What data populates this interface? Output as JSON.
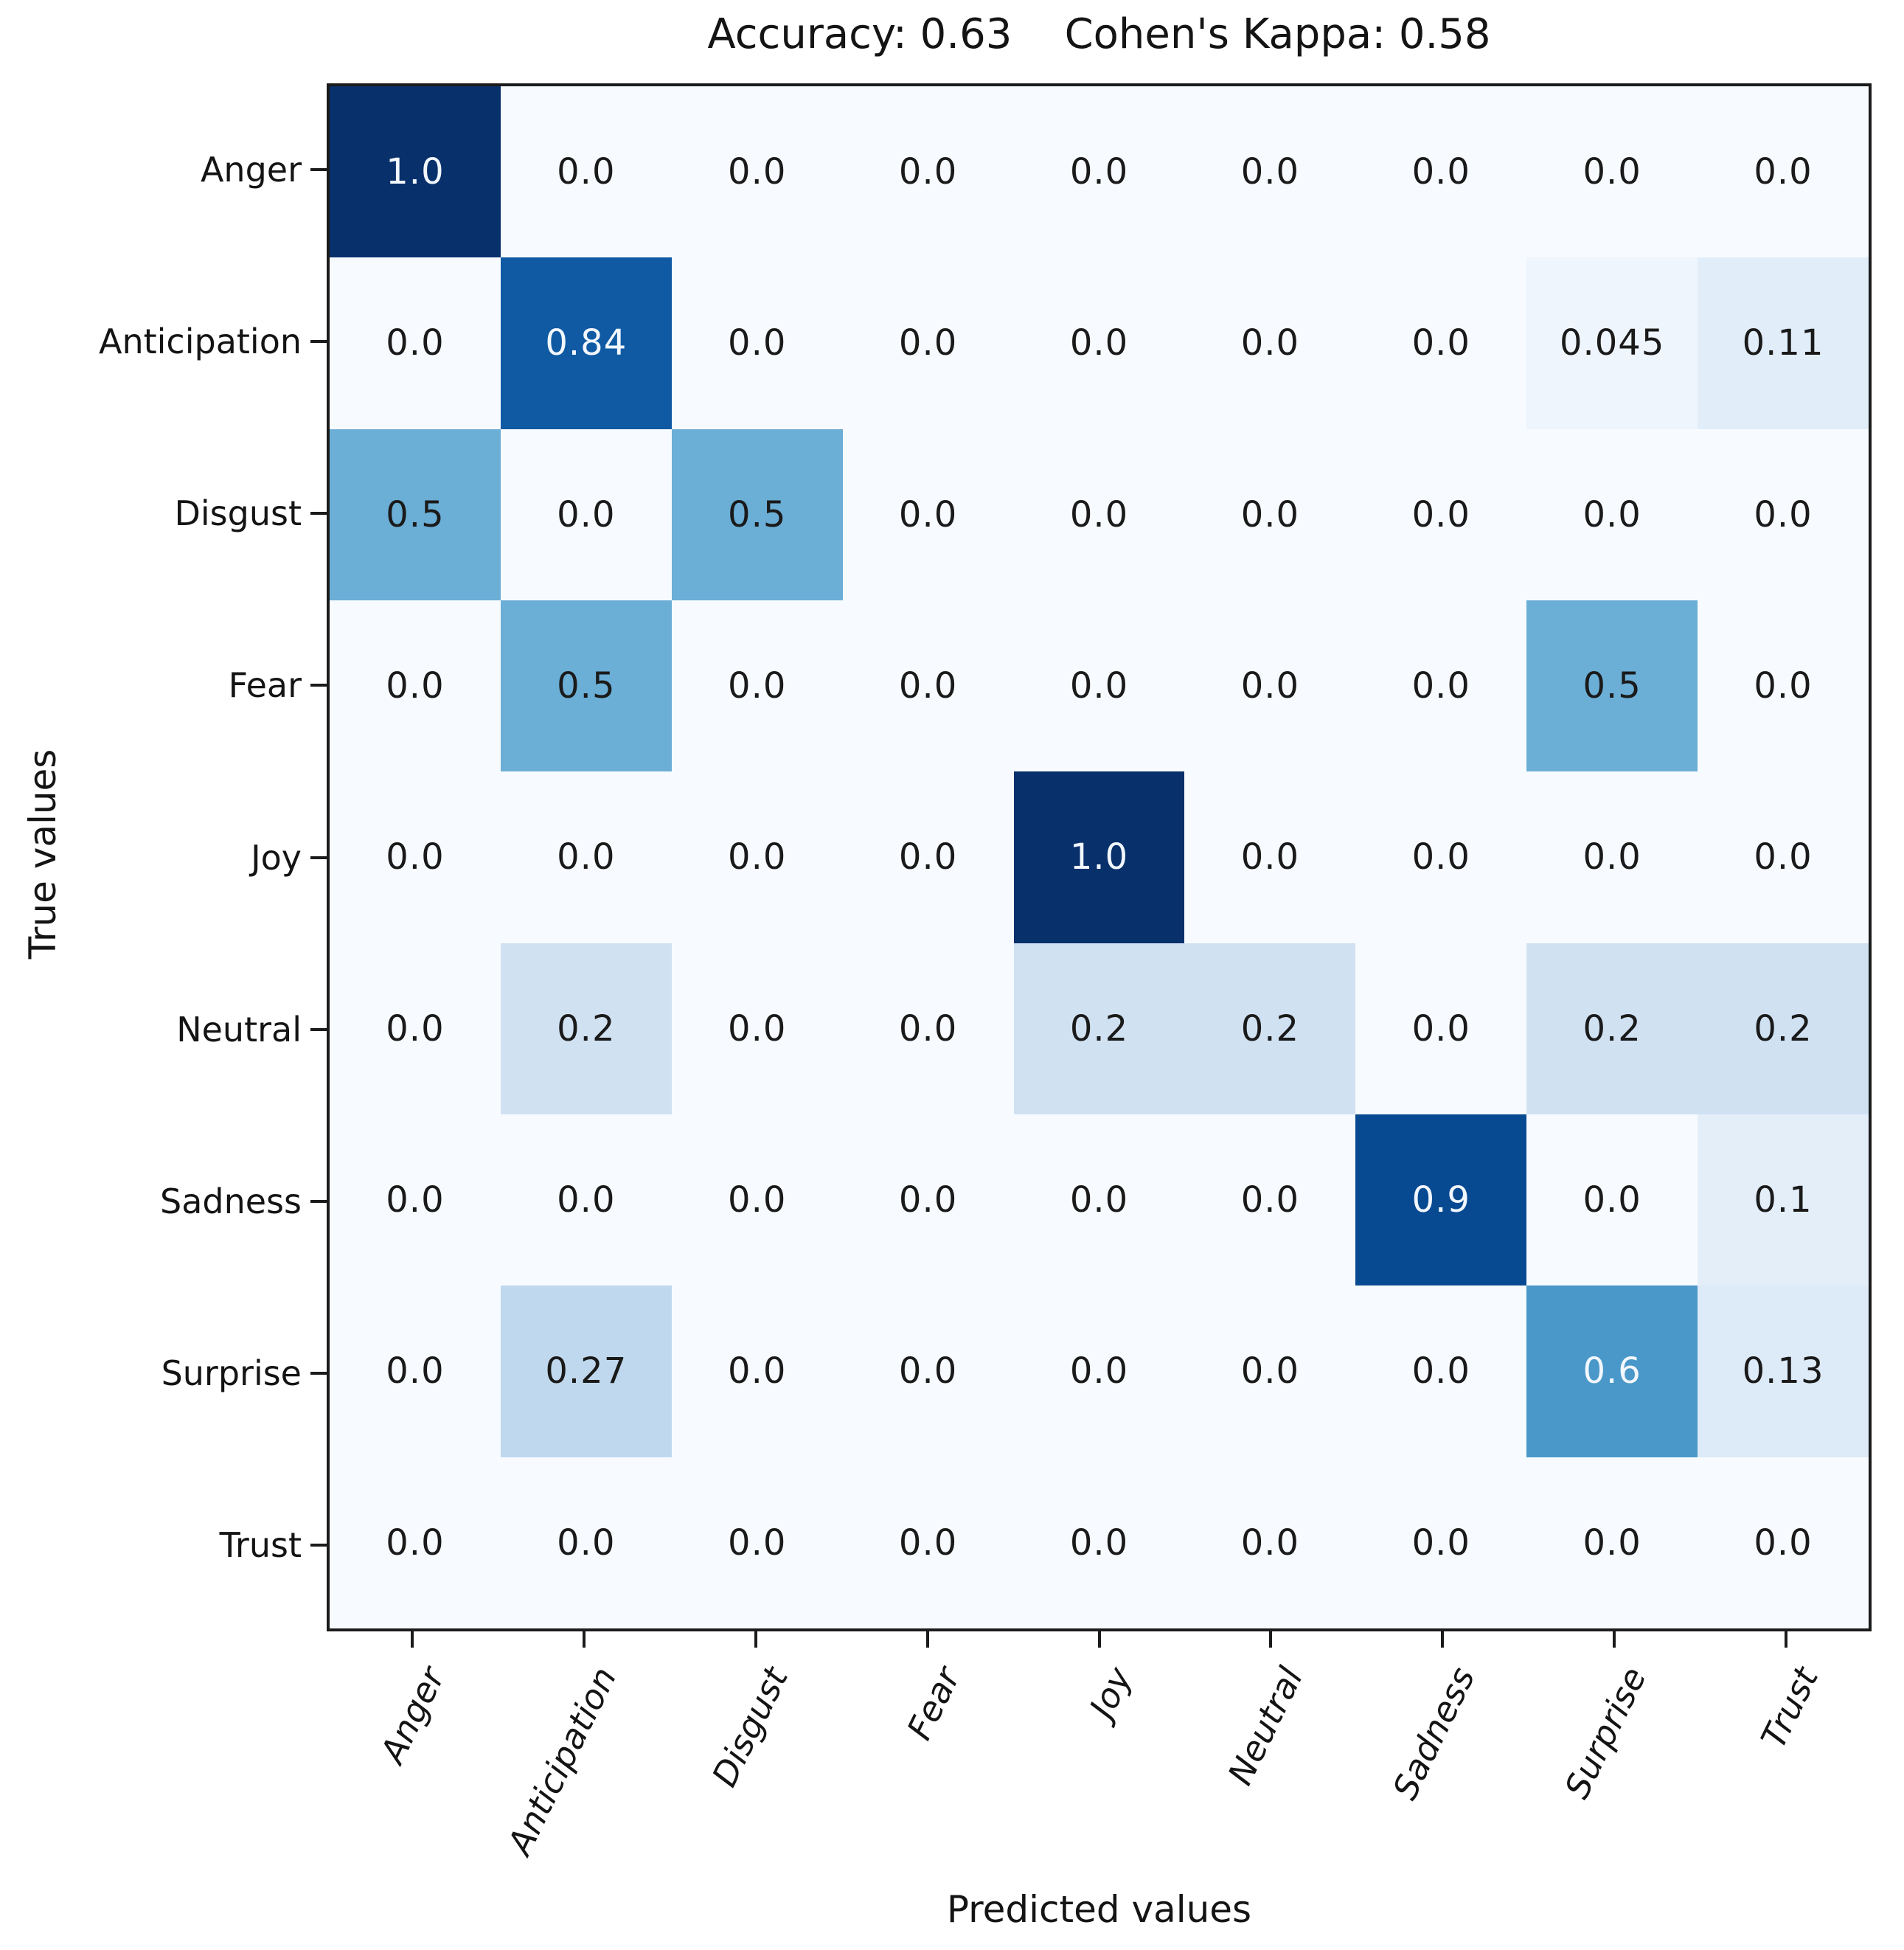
{
  "figure": {
    "title": "Accuracy: 0.63    Cohen's Kappa: 0.58"
  },
  "chart_data": {
    "type": "heatmap",
    "title": "Accuracy: 0.63    Cohen's Kappa: 0.58",
    "accuracy": "0.63",
    "cohens_kappa": "0.58",
    "xlabel": "Predicted values",
    "ylabel": "True values",
    "x_categories": [
      "Anger",
      "Anticipation",
      "Disgust",
      "Fear",
      "Joy",
      "Neutral",
      "Sadness",
      "Surprise",
      "Trust"
    ],
    "y_categories": [
      "Anger",
      "Anticipation",
      "Disgust",
      "Fear",
      "Joy",
      "Neutral",
      "Sadness",
      "Surprise",
      "Trust"
    ],
    "cell_labels": [
      [
        "1.0",
        "0.0",
        "0.0",
        "0.0",
        "0.0",
        "0.0",
        "0.0",
        "0.0",
        "0.0"
      ],
      [
        "0.0",
        "0.84",
        "0.0",
        "0.0",
        "0.0",
        "0.0",
        "0.0",
        "0.045",
        "0.11"
      ],
      [
        "0.5",
        "0.0",
        "0.5",
        "0.0",
        "0.0",
        "0.0",
        "0.0",
        "0.0",
        "0.0"
      ],
      [
        "0.0",
        "0.5",
        "0.0",
        "0.0",
        "0.0",
        "0.0",
        "0.0",
        "0.5",
        "0.0"
      ],
      [
        "0.0",
        "0.0",
        "0.0",
        "0.0",
        "1.0",
        "0.0",
        "0.0",
        "0.0",
        "0.0"
      ],
      [
        "0.0",
        "0.2",
        "0.0",
        "0.0",
        "0.2",
        "0.2",
        "0.0",
        "0.2",
        "0.2"
      ],
      [
        "0.0",
        "0.0",
        "0.0",
        "0.0",
        "0.0",
        "0.0",
        "0.9",
        "0.0",
        "0.1"
      ],
      [
        "0.0",
        "0.27",
        "0.0",
        "0.0",
        "0.0",
        "0.0",
        "0.0",
        "0.6",
        "0.13"
      ],
      [
        "0.0",
        "0.0",
        "0.0",
        "0.0",
        "0.0",
        "0.0",
        "0.0",
        "0.0",
        "0.0"
      ]
    ],
    "values": [
      [
        1.0,
        0.0,
        0.0,
        0.0,
        0.0,
        0.0,
        0.0,
        0.0,
        0.0
      ],
      [
        0.0,
        0.84,
        0.0,
        0.0,
        0.0,
        0.0,
        0.0,
        0.045,
        0.11
      ],
      [
        0.5,
        0.0,
        0.5,
        0.0,
        0.0,
        0.0,
        0.0,
        0.0,
        0.0
      ],
      [
        0.0,
        0.5,
        0.0,
        0.0,
        0.0,
        0.0,
        0.0,
        0.5,
        0.0
      ],
      [
        0.0,
        0.0,
        0.0,
        0.0,
        1.0,
        0.0,
        0.0,
        0.0,
        0.0
      ],
      [
        0.0,
        0.2,
        0.0,
        0.0,
        0.2,
        0.2,
        0.0,
        0.2,
        0.2
      ],
      [
        0.0,
        0.0,
        0.0,
        0.0,
        0.0,
        0.0,
        0.9,
        0.0,
        0.1
      ],
      [
        0.0,
        0.27,
        0.0,
        0.0,
        0.0,
        0.0,
        0.0,
        0.6,
        0.13
      ],
      [
        0.0,
        0.0,
        0.0,
        0.0,
        0.0,
        0.0,
        0.0,
        0.0,
        0.0
      ]
    ],
    "value_range": [
      0,
      1
    ],
    "colormap": "Blues",
    "colormap_stops": [
      [
        0.0,
        "#f7fbff"
      ],
      [
        0.125,
        "#deebf7"
      ],
      [
        0.25,
        "#c6dbef"
      ],
      [
        0.375,
        "#9ecae1"
      ],
      [
        0.5,
        "#6baed6"
      ],
      [
        0.625,
        "#4292c6"
      ],
      [
        0.75,
        "#2171b5"
      ],
      [
        0.875,
        "#08519c"
      ],
      [
        1.0,
        "#08306b"
      ]
    ],
    "annotation_text_threshold": 0.5,
    "colors": {
      "text_dark": "#1a1a1a",
      "text_light": "#f2f7fd",
      "spine": "#1b1b1b",
      "background": "#ffffff"
    },
    "grid": "off",
    "legend": "none"
  }
}
